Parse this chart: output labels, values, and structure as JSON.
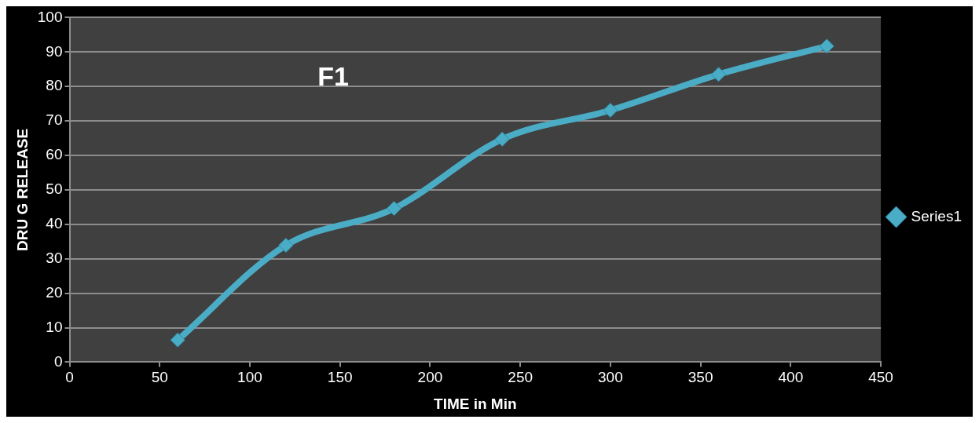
{
  "chart_data": {
    "type": "line",
    "title": "F1",
    "xlabel": "TIME in Min",
    "ylabel": "DRU G RELEASE",
    "x": [
      60,
      120,
      180,
      240,
      300,
      360,
      420
    ],
    "series": [
      {
        "name": "Series1",
        "color": "#4bacc6",
        "values": [
          6.4,
          33.9,
          44.6,
          64.7,
          73.1,
          83.5,
          91.7
        ]
      }
    ],
    "xlim": [
      0,
      450
    ],
    "xticks": [
      0,
      50,
      100,
      150,
      200,
      250,
      300,
      350,
      400,
      450
    ],
    "ylim": [
      0,
      100
    ],
    "yticks": [
      0,
      10,
      20,
      30,
      40,
      50,
      60,
      70,
      80,
      90,
      100
    ],
    "grid": "y",
    "legend": "right",
    "marker": "diamond",
    "line_style": "solid"
  }
}
